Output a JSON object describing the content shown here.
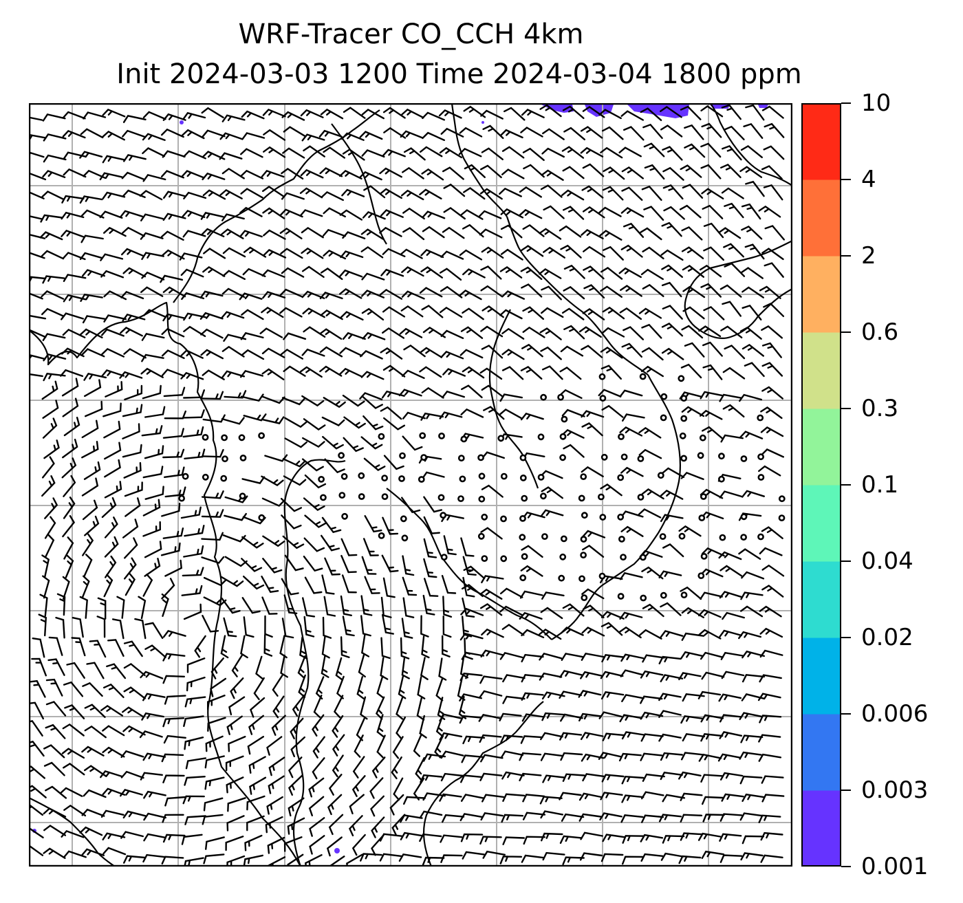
{
  "title": {
    "line1": "WRF-Tracer CO_CCH 4km",
    "line2": "Init 2024-03-03 1200 Time 2024-03-04 1800 ppm"
  },
  "colorbar": {
    "levels": [
      "0.001",
      "0.003",
      "0.006",
      "0.02",
      "0.04",
      "0.1",
      "0.3",
      "0.6",
      "2",
      "4",
      "10"
    ],
    "colors": [
      "#6633ff",
      "#3377f2",
      "#00b2e8",
      "#2edcd0",
      "#5ef6b8",
      "#92f49a",
      "#d0e18a",
      "#ffb060",
      "#ff7038",
      "#ff2a16"
    ]
  },
  "map": {
    "field_color": "#6633ff",
    "barb_color": "#000000",
    "coast_color": "#000000",
    "grid_color": "#b0b0b0"
  }
}
